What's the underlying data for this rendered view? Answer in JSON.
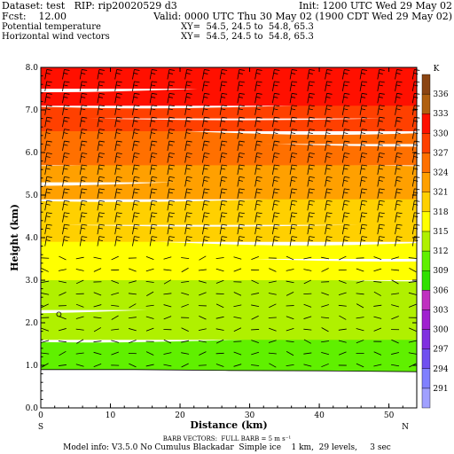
{
  "header": {
    "dataset": "Dataset: test   RIP: rip20020529 d3",
    "init": "Init: 1200 UTC Wed 29 May 02",
    "fcst": "Fcst:    12.00",
    "valid": "Valid: 0000 UTC Thu 30 May 02 (1900 CDT Wed 29 May 02)",
    "field1": "Potential temperature",
    "field1_xy": "XY=  54.5, 24.5 to  54.8, 65.3",
    "field2": "Horizontal wind vectors",
    "field2_xy": "XY=  54.5, 24.5 to  54.8, 65.3"
  },
  "footer": {
    "barb_note": "BARB VECTORS:  FULL BARB = 5 m s⁻¹",
    "model_info": "Model info: V3.5.0 No Cumulus Blackadar  Simple ice    1 km,  29 levels,     3 sec"
  },
  "chart_data": {
    "type": "heatmap",
    "title": "",
    "xlabel": "Distance (km)",
    "ylabel": "Height (km)",
    "xlim": [
      0,
      54
    ],
    "ylim": [
      0,
      8
    ],
    "x_ticks": [
      "0",
      "10",
      "20",
      "30",
      "40",
      "50"
    ],
    "y_ticks": [
      "0.0",
      "1.0",
      "2.0",
      "3.0",
      "4.0",
      "5.0",
      "6.0",
      "7.0",
      "8.0"
    ],
    "x_end_labels": {
      "left": "S",
      "right": "N"
    },
    "colorbar": {
      "unit": "K",
      "levels": [
        291,
        294,
        297,
        300,
        303,
        306,
        309,
        312,
        315,
        318,
        321,
        324,
        327,
        330,
        333,
        336
      ],
      "colors": [
        "#a0a0ff",
        "#8080ff",
        "#7050f0",
        "#8030e0",
        "#a020d0",
        "#c030c0",
        "#30e000",
        "#60f000",
        "#b0f000",
        "#ffff00",
        "#ffd000",
        "#ffa000",
        "#ff7000",
        "#ff4000",
        "#ff1000",
        "#b06010",
        "#8b4513"
      ]
    },
    "theta_bands": [
      {
        "z_top": 0.85,
        "theta": 311
      },
      {
        "z_top": 1.6,
        "theta": 311
      },
      {
        "z_top": 2.3,
        "theta": 312
      },
      {
        "z_top": 3.0,
        "theta": 313
      },
      {
        "z_top": 3.5,
        "theta": 315
      },
      {
        "z_top": 3.9,
        "theta": 316
      },
      {
        "z_top": 4.3,
        "theta": 318
      },
      {
        "z_top": 4.9,
        "theta": 319
      },
      {
        "z_top": 5.3,
        "theta": 321
      },
      {
        "z_top": 5.7,
        "theta": 322
      },
      {
        "z_top": 6.2,
        "theta": 324
      },
      {
        "z_top": 6.5,
        "theta": 325
      },
      {
        "z_top": 6.8,
        "theta": 327
      },
      {
        "z_top": 7.1,
        "theta": 328
      },
      {
        "z_top": 7.5,
        "theta": 330
      },
      {
        "z_top": 8.0,
        "theta": 332
      }
    ],
    "terrain_height_km": [
      0.9,
      0.9,
      0.88,
      0.87,
      0.85
    ]
  }
}
